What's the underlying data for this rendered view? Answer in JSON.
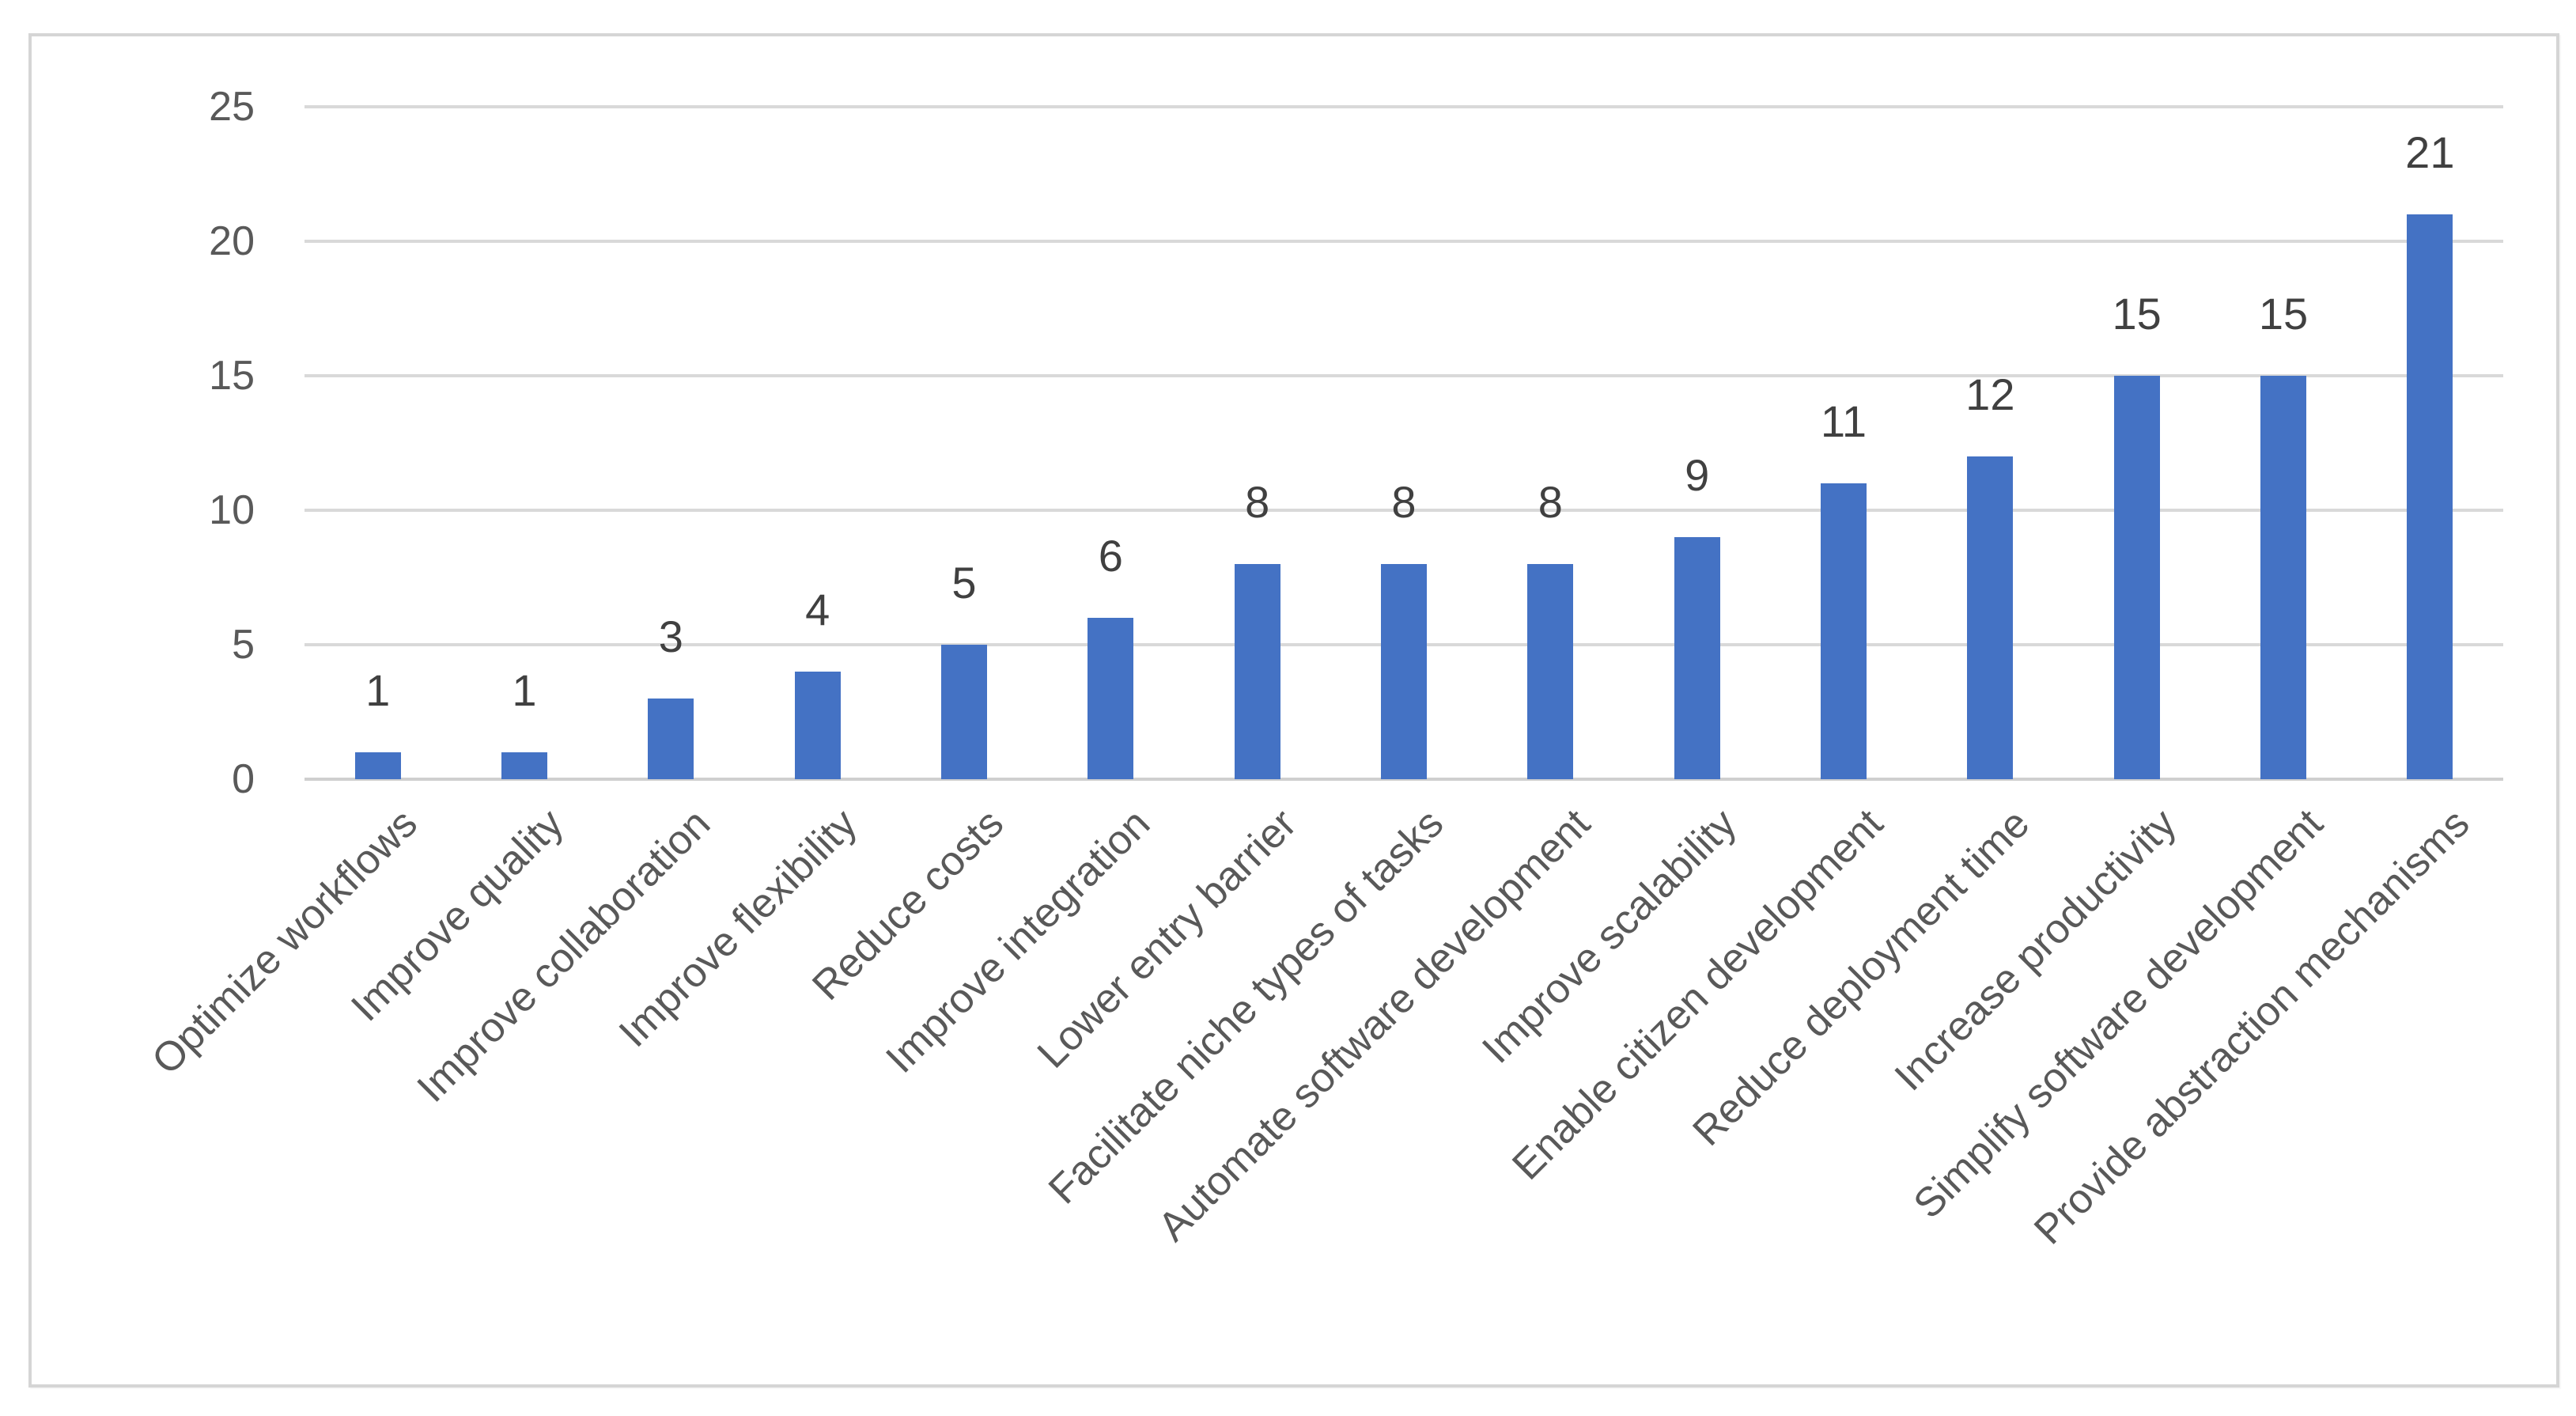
{
  "chart_data": {
    "type": "bar",
    "title": "",
    "xlabel": "",
    "ylabel": "",
    "categories": [
      "Optimize workflows",
      "Improve quality",
      "Improve collaboration",
      "Improve flexibility",
      "Reduce costs",
      "Improve integration",
      "Lower entry barrier",
      "Facilitate niche types of tasks",
      "Automate software development",
      "Improve scalability",
      "Enable citizen development",
      "Reduce deployment time",
      "Increase productivity",
      "Simplify software development",
      "Provide abstraction mechanisms"
    ],
    "values": [
      1,
      1,
      3,
      4,
      5,
      6,
      8,
      8,
      8,
      9,
      11,
      12,
      15,
      15,
      21
    ],
    "data_labels": [
      "1",
      "1",
      "3",
      "4",
      "5",
      "6",
      "8",
      "8",
      "8",
      "9",
      "11",
      "12",
      "15",
      "15",
      "21"
    ],
    "ylim": [
      0,
      25
    ],
    "yticks": [
      0,
      5,
      10,
      15,
      20,
      25
    ],
    "ytick_labels": [
      "0",
      "5",
      "10",
      "15",
      "20",
      "25"
    ],
    "grid": true,
    "legend_position": "none",
    "x_label_rotation_deg": 45,
    "colors": {
      "bar": "#4472C4",
      "gridline": "#D9D9D9",
      "axis_line": "#CFCFCF",
      "tick_label": "#595959",
      "category_label": "#595959",
      "data_label": "#404040",
      "chart_border": "#D5D5D5",
      "background": "#FFFFFF"
    }
  }
}
